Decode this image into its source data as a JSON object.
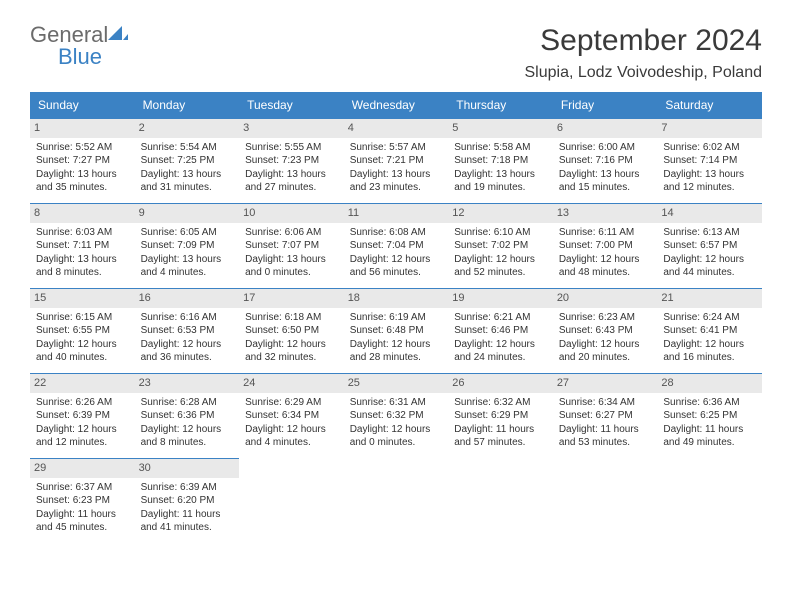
{
  "logo": {
    "general": "General",
    "blue": "Blue"
  },
  "title": "September 2024",
  "location": "Slupia, Lodz Voivodeship, Poland",
  "colors": {
    "header_bg": "#3b82c4",
    "header_text": "#ffffff",
    "daynum_bg": "#e9e9e9",
    "border": "#3b82c4",
    "text": "#333333",
    "logo_gray": "#6b6b6b",
    "logo_blue": "#3b82c4"
  },
  "weekdays": [
    "Sunday",
    "Monday",
    "Tuesday",
    "Wednesday",
    "Thursday",
    "Friday",
    "Saturday"
  ],
  "weeks": [
    [
      {
        "n": "1",
        "sr": "Sunrise: 5:52 AM",
        "ss": "Sunset: 7:27 PM",
        "d1": "Daylight: 13 hours",
        "d2": "and 35 minutes."
      },
      {
        "n": "2",
        "sr": "Sunrise: 5:54 AM",
        "ss": "Sunset: 7:25 PM",
        "d1": "Daylight: 13 hours",
        "d2": "and 31 minutes."
      },
      {
        "n": "3",
        "sr": "Sunrise: 5:55 AM",
        "ss": "Sunset: 7:23 PM",
        "d1": "Daylight: 13 hours",
        "d2": "and 27 minutes."
      },
      {
        "n": "4",
        "sr": "Sunrise: 5:57 AM",
        "ss": "Sunset: 7:21 PM",
        "d1": "Daylight: 13 hours",
        "d2": "and 23 minutes."
      },
      {
        "n": "5",
        "sr": "Sunrise: 5:58 AM",
        "ss": "Sunset: 7:18 PM",
        "d1": "Daylight: 13 hours",
        "d2": "and 19 minutes."
      },
      {
        "n": "6",
        "sr": "Sunrise: 6:00 AM",
        "ss": "Sunset: 7:16 PM",
        "d1": "Daylight: 13 hours",
        "d2": "and 15 minutes."
      },
      {
        "n": "7",
        "sr": "Sunrise: 6:02 AM",
        "ss": "Sunset: 7:14 PM",
        "d1": "Daylight: 13 hours",
        "d2": "and 12 minutes."
      }
    ],
    [
      {
        "n": "8",
        "sr": "Sunrise: 6:03 AM",
        "ss": "Sunset: 7:11 PM",
        "d1": "Daylight: 13 hours",
        "d2": "and 8 minutes."
      },
      {
        "n": "9",
        "sr": "Sunrise: 6:05 AM",
        "ss": "Sunset: 7:09 PM",
        "d1": "Daylight: 13 hours",
        "d2": "and 4 minutes."
      },
      {
        "n": "10",
        "sr": "Sunrise: 6:06 AM",
        "ss": "Sunset: 7:07 PM",
        "d1": "Daylight: 13 hours",
        "d2": "and 0 minutes."
      },
      {
        "n": "11",
        "sr": "Sunrise: 6:08 AM",
        "ss": "Sunset: 7:04 PM",
        "d1": "Daylight: 12 hours",
        "d2": "and 56 minutes."
      },
      {
        "n": "12",
        "sr": "Sunrise: 6:10 AM",
        "ss": "Sunset: 7:02 PM",
        "d1": "Daylight: 12 hours",
        "d2": "and 52 minutes."
      },
      {
        "n": "13",
        "sr": "Sunrise: 6:11 AM",
        "ss": "Sunset: 7:00 PM",
        "d1": "Daylight: 12 hours",
        "d2": "and 48 minutes."
      },
      {
        "n": "14",
        "sr": "Sunrise: 6:13 AM",
        "ss": "Sunset: 6:57 PM",
        "d1": "Daylight: 12 hours",
        "d2": "and 44 minutes."
      }
    ],
    [
      {
        "n": "15",
        "sr": "Sunrise: 6:15 AM",
        "ss": "Sunset: 6:55 PM",
        "d1": "Daylight: 12 hours",
        "d2": "and 40 minutes."
      },
      {
        "n": "16",
        "sr": "Sunrise: 6:16 AM",
        "ss": "Sunset: 6:53 PM",
        "d1": "Daylight: 12 hours",
        "d2": "and 36 minutes."
      },
      {
        "n": "17",
        "sr": "Sunrise: 6:18 AM",
        "ss": "Sunset: 6:50 PM",
        "d1": "Daylight: 12 hours",
        "d2": "and 32 minutes."
      },
      {
        "n": "18",
        "sr": "Sunrise: 6:19 AM",
        "ss": "Sunset: 6:48 PM",
        "d1": "Daylight: 12 hours",
        "d2": "and 28 minutes."
      },
      {
        "n": "19",
        "sr": "Sunrise: 6:21 AM",
        "ss": "Sunset: 6:46 PM",
        "d1": "Daylight: 12 hours",
        "d2": "and 24 minutes."
      },
      {
        "n": "20",
        "sr": "Sunrise: 6:23 AM",
        "ss": "Sunset: 6:43 PM",
        "d1": "Daylight: 12 hours",
        "d2": "and 20 minutes."
      },
      {
        "n": "21",
        "sr": "Sunrise: 6:24 AM",
        "ss": "Sunset: 6:41 PM",
        "d1": "Daylight: 12 hours",
        "d2": "and 16 minutes."
      }
    ],
    [
      {
        "n": "22",
        "sr": "Sunrise: 6:26 AM",
        "ss": "Sunset: 6:39 PM",
        "d1": "Daylight: 12 hours",
        "d2": "and 12 minutes."
      },
      {
        "n": "23",
        "sr": "Sunrise: 6:28 AM",
        "ss": "Sunset: 6:36 PM",
        "d1": "Daylight: 12 hours",
        "d2": "and 8 minutes."
      },
      {
        "n": "24",
        "sr": "Sunrise: 6:29 AM",
        "ss": "Sunset: 6:34 PM",
        "d1": "Daylight: 12 hours",
        "d2": "and 4 minutes."
      },
      {
        "n": "25",
        "sr": "Sunrise: 6:31 AM",
        "ss": "Sunset: 6:32 PM",
        "d1": "Daylight: 12 hours",
        "d2": "and 0 minutes."
      },
      {
        "n": "26",
        "sr": "Sunrise: 6:32 AM",
        "ss": "Sunset: 6:29 PM",
        "d1": "Daylight: 11 hours",
        "d2": "and 57 minutes."
      },
      {
        "n": "27",
        "sr": "Sunrise: 6:34 AM",
        "ss": "Sunset: 6:27 PM",
        "d1": "Daylight: 11 hours",
        "d2": "and 53 minutes."
      },
      {
        "n": "28",
        "sr": "Sunrise: 6:36 AM",
        "ss": "Sunset: 6:25 PM",
        "d1": "Daylight: 11 hours",
        "d2": "and 49 minutes."
      }
    ],
    [
      {
        "n": "29",
        "sr": "Sunrise: 6:37 AM",
        "ss": "Sunset: 6:23 PM",
        "d1": "Daylight: 11 hours",
        "d2": "and 45 minutes."
      },
      {
        "n": "30",
        "sr": "Sunrise: 6:39 AM",
        "ss": "Sunset: 6:20 PM",
        "d1": "Daylight: 11 hours",
        "d2": "and 41 minutes."
      },
      null,
      null,
      null,
      null,
      null
    ]
  ]
}
